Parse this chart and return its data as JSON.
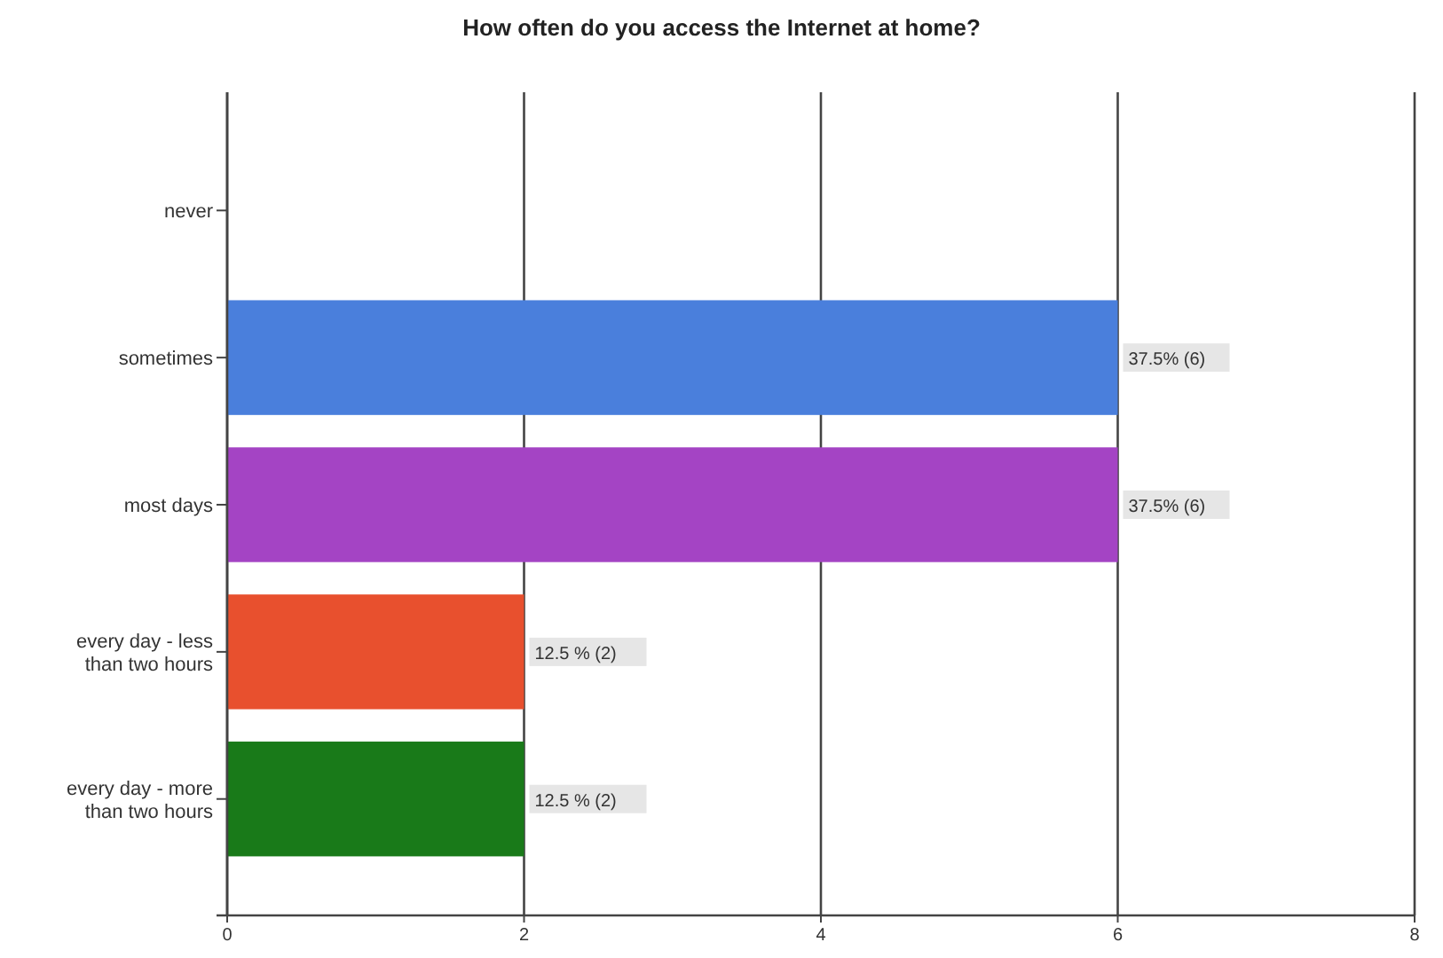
{
  "chart_data": {
    "type": "bar",
    "orientation": "horizontal",
    "title": "How often do you access the Internet at home?",
    "categories": [
      "never",
      "sometimes",
      "most days",
      "every day - less than two hours",
      "every day - more than two hours"
    ],
    "values": [
      0,
      6,
      6,
      2,
      2
    ],
    "colors": [
      "#4a7fdc",
      "#4a7fdc",
      "#a444c4",
      "#e8502e",
      "#197a19"
    ],
    "value_labels": [
      null,
      "37.5% (6)",
      "37.5% (6)",
      "12.5 % (2)",
      "12.5 % (2)"
    ],
    "xlim": [
      0,
      8
    ],
    "xticks": [
      0,
      2,
      4,
      6,
      8
    ],
    "grid": "x"
  }
}
